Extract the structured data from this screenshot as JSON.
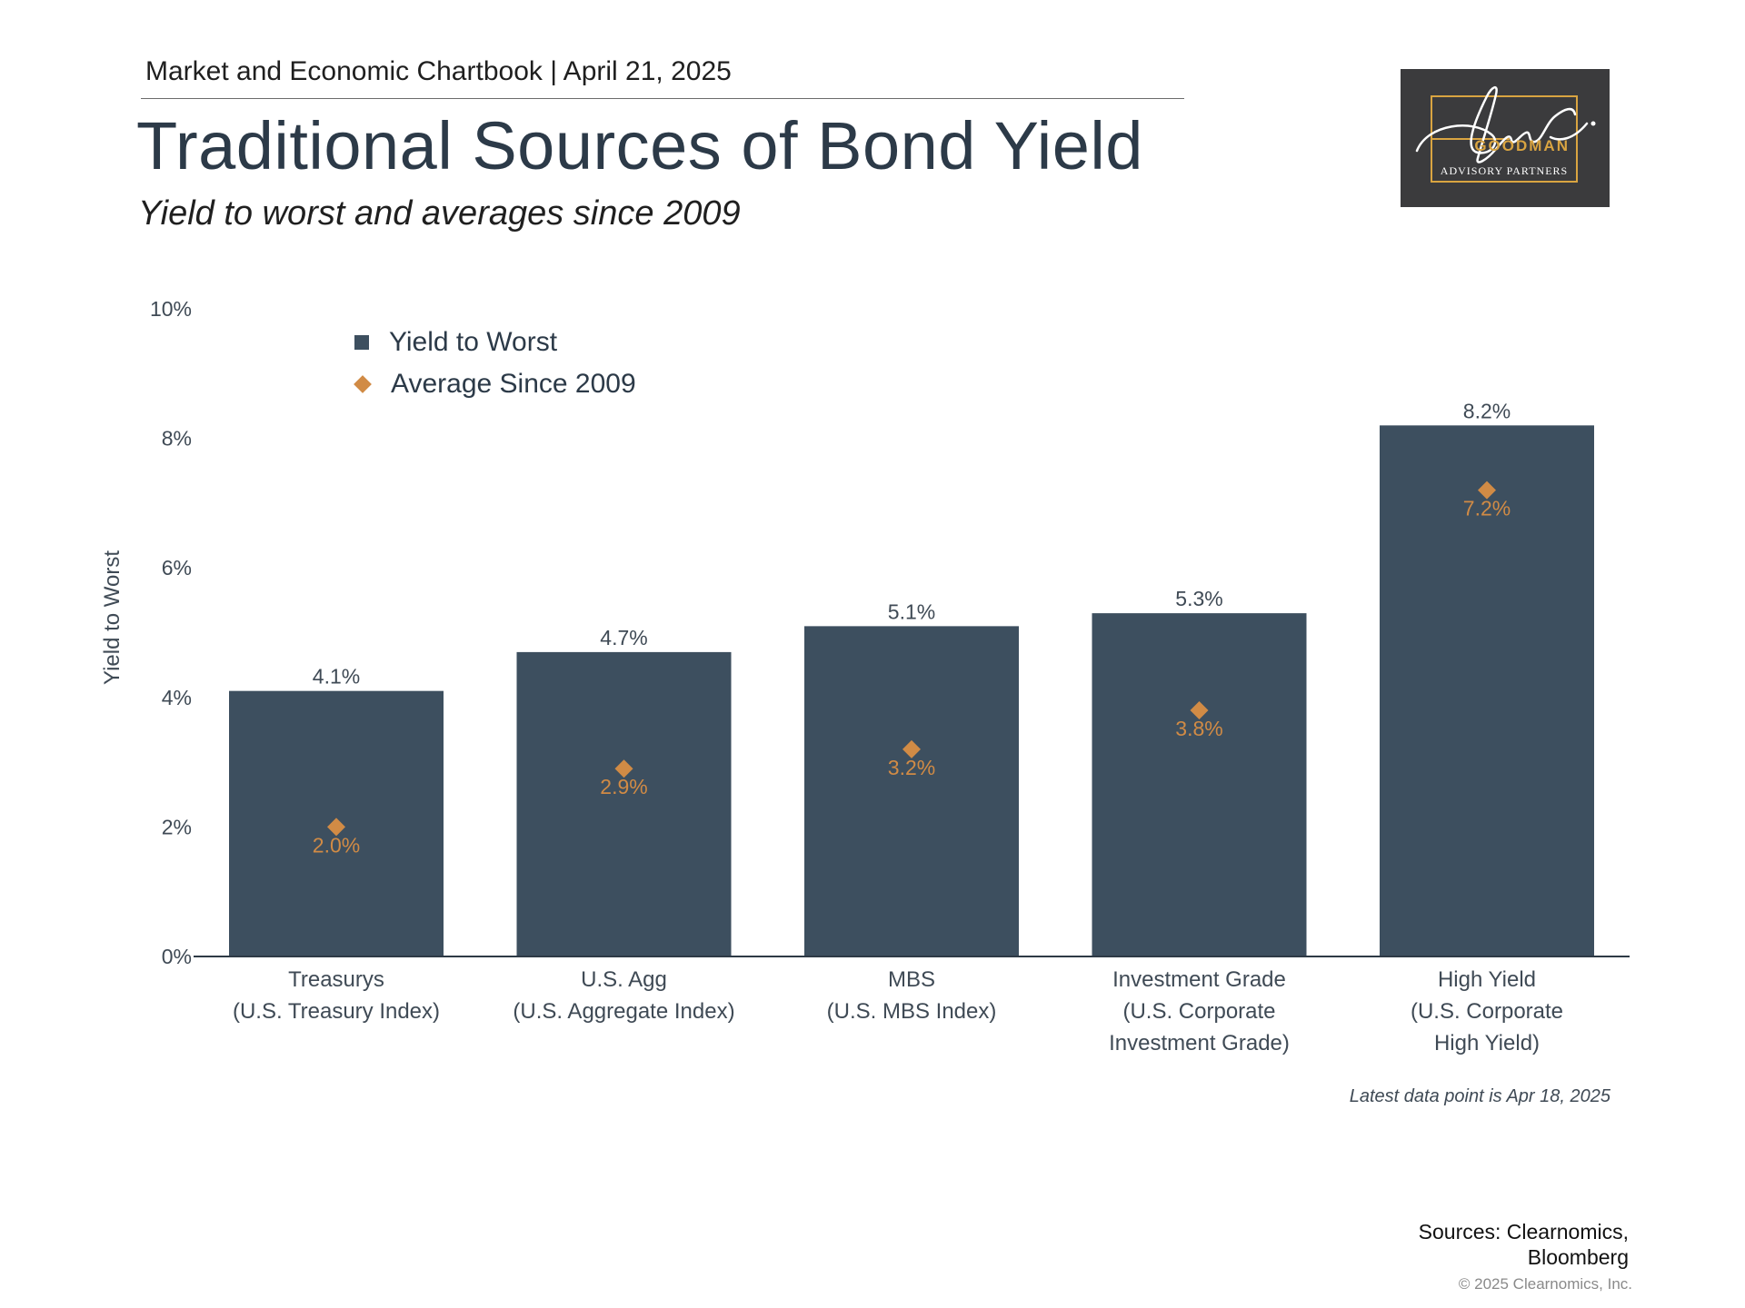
{
  "header": {
    "chartbook": "Market and Economic Chartbook | April 21, 2025",
    "title": "Traditional Sources of Bond Yield",
    "subtitle": "Yield to worst and averages since 2009"
  },
  "logo": {
    "brand_top": "GOODMAN",
    "brand_bottom": "ADVISORY PARTNERS",
    "signature": "Jon C.",
    "colors": {
      "background": "#3b3b3d",
      "accent": "#d9a441"
    }
  },
  "chart_data": {
    "type": "bar",
    "ylabel": "Yield to Worst",
    "ylim": [
      0,
      10
    ],
    "yticks": [
      0,
      2,
      4,
      6,
      8,
      10
    ],
    "ytick_labels": [
      "0%",
      "2%",
      "4%",
      "6%",
      "8%",
      "10%"
    ],
    "categories": [
      [
        "Treasurys",
        "(U.S. Treasury Index)"
      ],
      [
        "U.S. Agg",
        "(U.S. Aggregate Index)"
      ],
      [
        "MBS",
        "(U.S. MBS Index)"
      ],
      [
        "Investment Grade",
        "(U.S. Corporate",
        "Investment Grade)"
      ],
      [
        "High Yield",
        "(U.S. Corporate",
        "High Yield)"
      ]
    ],
    "series": [
      {
        "name": "Yield to Worst",
        "mark": "bar",
        "color": "#3d4f5f",
        "values": [
          4.1,
          4.7,
          5.1,
          5.3,
          8.2
        ],
        "labels": [
          "4.1%",
          "4.7%",
          "5.1%",
          "5.3%",
          "8.2%"
        ]
      },
      {
        "name": "Average Since 2009",
        "mark": "diamond",
        "color": "#d18b45",
        "values": [
          2.0,
          2.9,
          3.2,
          3.8,
          7.2
        ],
        "labels": [
          "2.0%",
          "2.9%",
          "3.2%",
          "3.8%",
          "7.2%"
        ]
      }
    ],
    "legend_position": "top-left",
    "grid": false,
    "footnote": "Latest data point is Apr 18, 2025"
  },
  "footer": {
    "sources": "Sources: Clearnomics, Bloomberg",
    "copyright": "© 2025 Clearnomics, Inc."
  }
}
